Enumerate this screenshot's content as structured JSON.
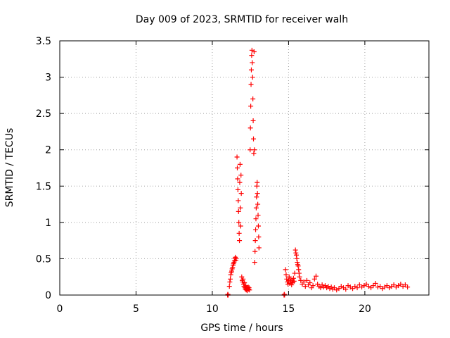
{
  "chart_data": {
    "type": "scatter",
    "title": "Day 009 of 2023, SRMTID for receiver walh",
    "xlabel": "GPS time / hours",
    "ylabel": "SRMTID / TECUs",
    "xlim": [
      0,
      24.2
    ],
    "ylim": [
      0,
      3.5
    ],
    "x_ticks": [
      0,
      5,
      10,
      15,
      20
    ],
    "x_tick_labels": [
      "0",
      "5",
      "10",
      "15",
      "20"
    ],
    "y_ticks": [
      0,
      0.5,
      1,
      1.5,
      2,
      2.5,
      3,
      3.5
    ],
    "y_tick_labels": [
      "0",
      "0.5",
      "1",
      "1.5",
      "2",
      "2.5",
      "3",
      "3.5"
    ],
    "grid": true,
    "marker": "+",
    "series": [
      {
        "name": "SRMTID",
        "color": "#ff0000",
        "x": [
          11.0,
          11.02,
          11.04,
          11.12,
          11.15,
          11.18,
          11.21,
          11.24,
          11.27,
          11.3,
          11.33,
          11.36,
          11.39,
          11.42,
          11.45,
          11.48,
          11.51,
          11.54,
          11.57,
          11.62,
          11.64,
          11.66,
          11.68,
          11.7,
          11.72,
          11.74,
          11.76,
          11.78,
          11.8,
          11.82,
          11.84,
          11.86,
          11.88,
          11.9,
          11.93,
          11.96,
          11.99,
          12.02,
          12.05,
          12.08,
          12.11,
          12.14,
          12.17,
          12.2,
          12.23,
          12.26,
          12.29,
          12.32,
          12.35,
          12.38,
          12.41,
          12.44,
          12.48,
          12.5,
          12.52,
          12.54,
          12.56,
          12.58,
          12.6,
          12.62,
          12.64,
          12.66,
          12.68,
          12.7,
          12.72,
          12.74,
          12.76,
          12.78,
          12.8,
          12.82,
          12.84,
          12.86,
          12.88,
          12.9,
          12.92,
          12.94,
          12.96,
          12.98,
          13.0,
          13.02,
          13.04,
          13.06,
          14.7,
          14.72,
          14.74,
          14.8,
          14.84,
          14.88,
          14.92,
          14.96,
          15.0,
          15.04,
          15.08,
          15.12,
          15.16,
          15.2,
          15.24,
          15.28,
          15.32,
          15.36,
          15.4,
          15.45,
          15.48,
          15.51,
          15.54,
          15.57,
          15.6,
          15.63,
          15.66,
          15.69,
          15.72,
          15.8,
          15.9,
          16.0,
          16.1,
          16.2,
          16.3,
          16.4,
          16.5,
          16.6,
          16.7,
          16.8,
          16.9,
          17.0,
          17.1,
          17.2,
          17.3,
          17.4,
          17.5,
          17.6,
          17.7,
          17.8,
          17.9,
          18.0,
          18.15,
          18.3,
          18.45,
          18.6,
          18.75,
          18.9,
          19.05,
          19.2,
          19.35,
          19.5,
          19.65,
          19.8,
          19.95,
          20.1,
          20.25,
          20.4,
          20.55,
          20.7,
          20.85,
          21.0,
          21.15,
          21.3,
          21.45,
          21.6,
          21.75,
          21.9,
          22.05,
          22.2,
          22.35,
          22.5,
          22.65,
          22.8
        ],
        "y": [
          0.0,
          0.01,
          0.0,
          0.12,
          0.18,
          0.22,
          0.28,
          0.31,
          0.33,
          0.36,
          0.38,
          0.41,
          0.43,
          0.45,
          0.47,
          0.5,
          0.52,
          0.48,
          0.5,
          1.9,
          1.75,
          1.6,
          1.45,
          1.3,
          1.15,
          1.0,
          0.85,
          0.75,
          1.55,
          1.8,
          1.2,
          0.95,
          1.65,
          1.4,
          0.25,
          0.2,
          0.18,
          0.22,
          0.15,
          0.12,
          0.17,
          0.1,
          0.08,
          0.13,
          0.07,
          0.1,
          0.06,
          0.09,
          0.11,
          0.08,
          0.1,
          0.07,
          2.0,
          2.3,
          2.6,
          2.9,
          3.1,
          3.3,
          3.37,
          3.2,
          3.0,
          2.7,
          2.4,
          2.15,
          1.95,
          3.35,
          2.0,
          0.45,
          0.6,
          0.75,
          0.9,
          1.05,
          1.2,
          1.35,
          1.5,
          1.55,
          1.4,
          1.25,
          1.1,
          0.95,
          0.8,
          0.65,
          0.0,
          0.01,
          0.0,
          0.35,
          0.28,
          0.22,
          0.18,
          0.15,
          0.2,
          0.25,
          0.16,
          0.22,
          0.18,
          0.14,
          0.2,
          0.17,
          0.23,
          0.19,
          0.3,
          0.62,
          0.58,
          0.55,
          0.5,
          0.45,
          0.42,
          0.4,
          0.35,
          0.3,
          0.25,
          0.2,
          0.15,
          0.18,
          0.12,
          0.2,
          0.14,
          0.17,
          0.1,
          0.13,
          0.22,
          0.26,
          0.15,
          0.12,
          0.1,
          0.14,
          0.11,
          0.13,
          0.1,
          0.12,
          0.09,
          0.11,
          0.08,
          0.1,
          0.07,
          0.09,
          0.12,
          0.1,
          0.08,
          0.13,
          0.11,
          0.09,
          0.12,
          0.1,
          0.14,
          0.11,
          0.13,
          0.15,
          0.12,
          0.1,
          0.13,
          0.16,
          0.11,
          0.12,
          0.09,
          0.11,
          0.13,
          0.1,
          0.12,
          0.14,
          0.11,
          0.13,
          0.15,
          0.12,
          0.14,
          0.11
        ]
      }
    ]
  }
}
